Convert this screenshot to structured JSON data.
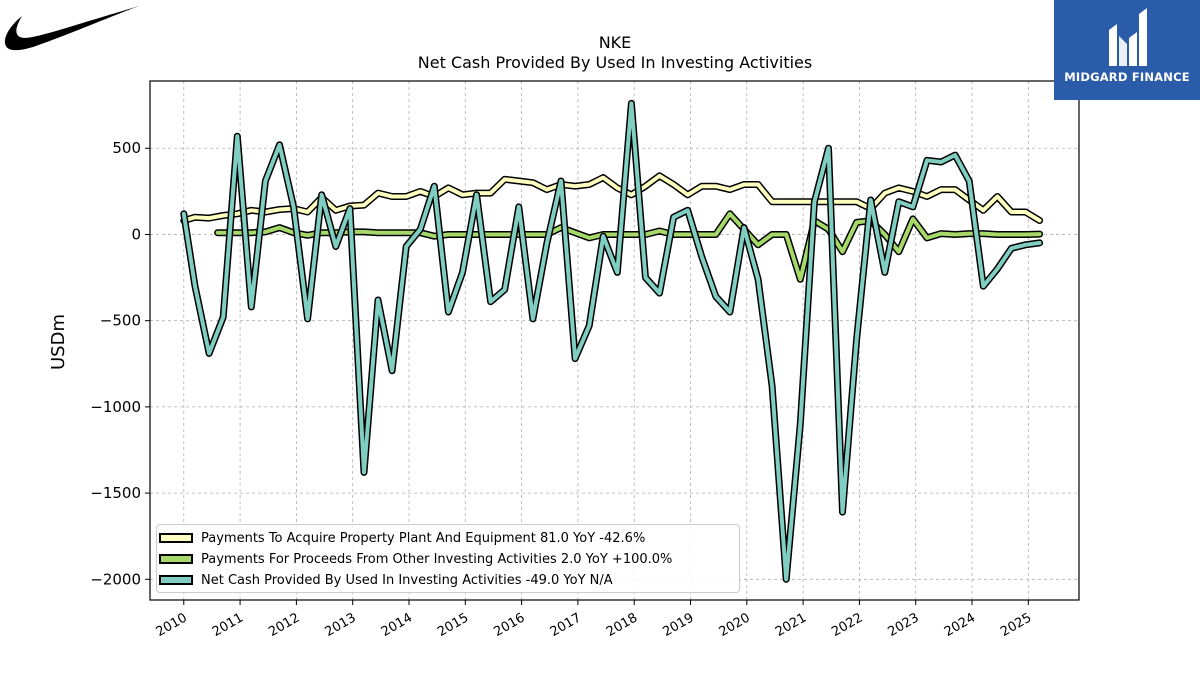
{
  "logos": {
    "left_icon": "swoosh-logo",
    "right_text": "MIDGARD FINANCE",
    "right_icon": "midgard-monogram",
    "right_bg": "#2a5caa"
  },
  "chart_data": {
    "type": "line",
    "title": "NKE",
    "subtitle": "Net Cash Provided By Used In Investing Activities",
    "ylabel": "USDm",
    "xlabel": "",
    "xlim": [
      2009.4,
      2025.9
    ],
    "ylim": [
      -2120,
      890
    ],
    "x_ticks": [
      2010,
      2011,
      2012,
      2013,
      2014,
      2015,
      2016,
      2017,
      2018,
      2019,
      2020,
      2021,
      2022,
      2023,
      2024,
      2025
    ],
    "x_tick_labels": [
      "2010",
      "2011",
      "2012",
      "2013",
      "2014",
      "2015",
      "2016",
      "2017",
      "2018",
      "2019",
      "2020",
      "2021",
      "2022",
      "2023",
      "2024",
      "2025"
    ],
    "y_ticks": [
      500,
      0,
      -500,
      -1000,
      -1500,
      -2000
    ],
    "y_tick_labels": [
      "500",
      "0",
      "−500",
      "−1000",
      "−1500",
      "−2000"
    ],
    "grid": true,
    "legend_position": "lower-left",
    "series": [
      {
        "name": "Payments To Acquire Property Plant And Equipment",
        "legend": "Payments To Acquire Property Plant And Equipment  81.0 YoY -42.6%",
        "color": "#ffffbf",
        "x": [
          2010.0,
          2010.2,
          2010.45,
          2010.7,
          2010.95,
          2011.2,
          2011.45,
          2011.7,
          2011.95,
          2012.2,
          2012.45,
          2012.7,
          2012.95,
          2013.2,
          2013.45,
          2013.7,
          2013.95,
          2014.2,
          2014.45,
          2014.7,
          2014.95,
          2015.2,
          2015.45,
          2015.7,
          2015.95,
          2016.2,
          2016.45,
          2016.7,
          2016.95,
          2017.2,
          2017.45,
          2017.7,
          2017.95,
          2018.2,
          2018.45,
          2018.7,
          2018.95,
          2019.2,
          2019.45,
          2019.7,
          2019.95,
          2020.2,
          2020.45,
          2020.7,
          2020.95,
          2021.2,
          2021.45,
          2021.7,
          2021.95,
          2022.2,
          2022.45,
          2022.7,
          2022.95,
          2023.2,
          2023.45,
          2023.7,
          2023.95,
          2024.2,
          2024.45,
          2024.7,
          2024.95,
          2025.2
        ],
        "y": [
          80,
          100,
          95,
          110,
          120,
          140,
          130,
          145,
          150,
          130,
          215,
          140,
          165,
          170,
          240,
          220,
          220,
          250,
          220,
          270,
          230,
          240,
          240,
          320,
          310,
          300,
          260,
          290,
          280,
          290,
          330,
          270,
          230,
          280,
          340,
          290,
          230,
          280,
          280,
          260,
          290,
          290,
          190,
          190,
          190,
          190,
          190,
          190,
          190,
          150,
          240,
          270,
          250,
          220,
          260,
          260,
          200,
          140,
          220,
          130,
          130,
          81
        ]
      },
      {
        "name": "Payments For Proceeds From Other Investing Activities",
        "legend": "Payments For Proceeds From Other Investing Activities  2.0 YoY +100.0%",
        "color": "#a6d96a",
        "x": [
          2010.6,
          2010.95,
          2011.2,
          2011.45,
          2011.7,
          2011.95,
          2012.2,
          2012.45,
          2012.7,
          2012.95,
          2013.2,
          2013.45,
          2013.7,
          2013.95,
          2014.2,
          2014.45,
          2014.7,
          2014.95,
          2015.2,
          2015.45,
          2015.7,
          2015.95,
          2016.2,
          2016.45,
          2016.7,
          2016.95,
          2017.2,
          2017.45,
          2017.7,
          2017.95,
          2018.2,
          2018.45,
          2018.7,
          2018.95,
          2019.2,
          2019.45,
          2019.7,
          2019.95,
          2020.2,
          2020.45,
          2020.7,
          2020.95,
          2021.2,
          2021.45,
          2021.7,
          2021.95,
          2022.2,
          2022.45,
          2022.7,
          2022.95,
          2023.2,
          2023.45,
          2023.7,
          2023.95,
          2024.2,
          2024.45,
          2024.7,
          2024.95,
          2025.2
        ],
        "y": [
          10,
          10,
          10,
          15,
          40,
          10,
          -5,
          10,
          10,
          15,
          15,
          10,
          10,
          10,
          10,
          -10,
          0,
          0,
          0,
          0,
          0,
          0,
          0,
          0,
          40,
          10,
          -20,
          0,
          0,
          0,
          0,
          20,
          0,
          0,
          0,
          0,
          120,
          30,
          -60,
          0,
          0,
          -260,
          80,
          30,
          -100,
          70,
          80,
          0,
          -100,
          90,
          -20,
          5,
          0,
          5,
          5,
          0,
          0,
          0,
          2
        ]
      },
      {
        "name": "Net Cash Provided By Used In Investing Activities",
        "legend": "Net Cash Provided By Used In Investing Activities  -49.0 YoY N/A",
        "color": "#80cdc1",
        "x": [
          2010.0,
          2010.2,
          2010.45,
          2010.7,
          2010.95,
          2011.2,
          2011.45,
          2011.7,
          2011.95,
          2012.2,
          2012.45,
          2012.7,
          2012.95,
          2013.2,
          2013.45,
          2013.7,
          2013.95,
          2014.2,
          2014.45,
          2014.7,
          2014.95,
          2015.2,
          2015.45,
          2015.7,
          2015.95,
          2016.2,
          2016.45,
          2016.7,
          2016.95,
          2017.2,
          2017.45,
          2017.7,
          2017.95,
          2018.2,
          2018.45,
          2018.7,
          2018.95,
          2019.2,
          2019.45,
          2019.7,
          2019.95,
          2020.2,
          2020.45,
          2020.7,
          2020.95,
          2021.2,
          2021.45,
          2021.7,
          2021.95,
          2022.2,
          2022.45,
          2022.7,
          2022.95,
          2023.2,
          2023.45,
          2023.7,
          2023.95,
          2024.2,
          2024.45,
          2024.7,
          2024.95,
          2025.2
        ],
        "y": [
          120,
          -300,
          -690,
          -480,
          570,
          -420,
          310,
          520,
          160,
          -490,
          230,
          -70,
          150,
          -1380,
          -380,
          -790,
          -70,
          30,
          280,
          -450,
          -220,
          230,
          -390,
          -320,
          160,
          -490,
          -50,
          310,
          -720,
          -530,
          -10,
          -220,
          760,
          -250,
          -340,
          100,
          140,
          -130,
          -360,
          -450,
          40,
          -260,
          -880,
          -2000,
          -1100,
          190,
          500,
          -1610,
          -610,
          200,
          -220,
          190,
          160,
          430,
          420,
          460,
          310,
          -300,
          -200,
          -80,
          -60,
          -49
        ]
      }
    ]
  }
}
